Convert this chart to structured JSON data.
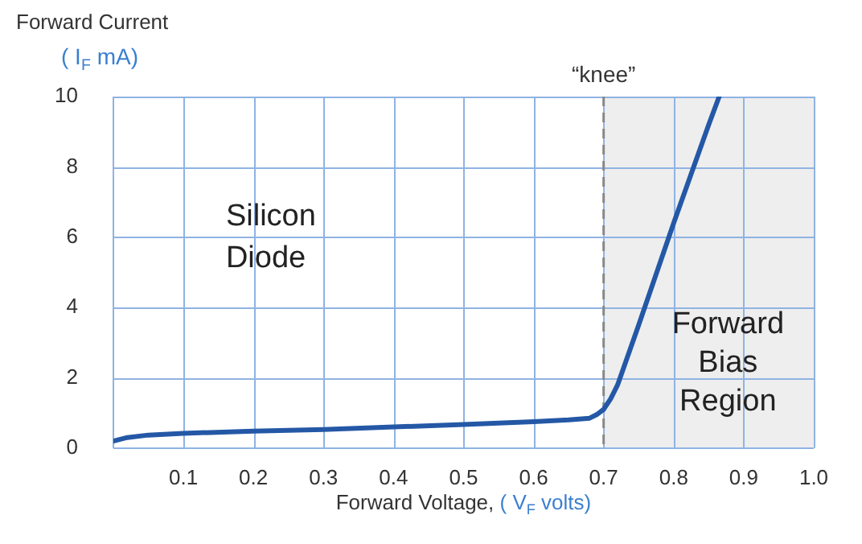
{
  "chart_data": {
    "type": "line",
    "xlabel": "Forward Voltage, ( V$_{F}$ volts)",
    "ylabel": "Forward Current ( I$_{F}$ mA)",
    "x": [
      0,
      0.02,
      0.05,
      0.1,
      0.2,
      0.3,
      0.4,
      0.5,
      0.6,
      0.65,
      0.68,
      0.69,
      0.7,
      0.71,
      0.72,
      0.75,
      0.8,
      0.85,
      0.865
    ],
    "series": [
      {
        "color": "#2458a6",
        "values": [
          0.2,
          0.3,
          0.37,
          0.42,
          0.48,
          0.53,
          0.6,
          0.67,
          0.75,
          0.8,
          0.85,
          0.95,
          1.1,
          1.4,
          1.8,
          3.5,
          6.4,
          9.2,
          10
        ]
      }
    ],
    "xlim": [
      0,
      1
    ],
    "xticks": [
      {
        "value": 0,
        "label": null
      },
      0.1,
      0.2,
      0.3,
      0.4,
      0.5,
      0.6,
      0.7,
      0.8,
      0.9,
      {
        "value": 1.0,
        "label": "1.0"
      }
    ],
    "ylim": [
      0,
      10
    ],
    "yticks": [
      0,
      2,
      4,
      6,
      8,
      10
    ],
    "grid": true,
    "legend": false,
    "marker": "none",
    "line_style": "solid",
    "ref_lines": [
      {
        "axis": "x",
        "value": 0.7,
        "label": "“knee”",
        "color": "#888888",
        "line_style": "dashed"
      }
    ],
    "bands": [
      {
        "axis": "x",
        "from": 0.7,
        "to": 1.0,
        "label": "Forward Bias Region",
        "color": "#eeeeee"
      }
    ],
    "annotations": [
      "Silicon Diode"
    ]
  }
}
